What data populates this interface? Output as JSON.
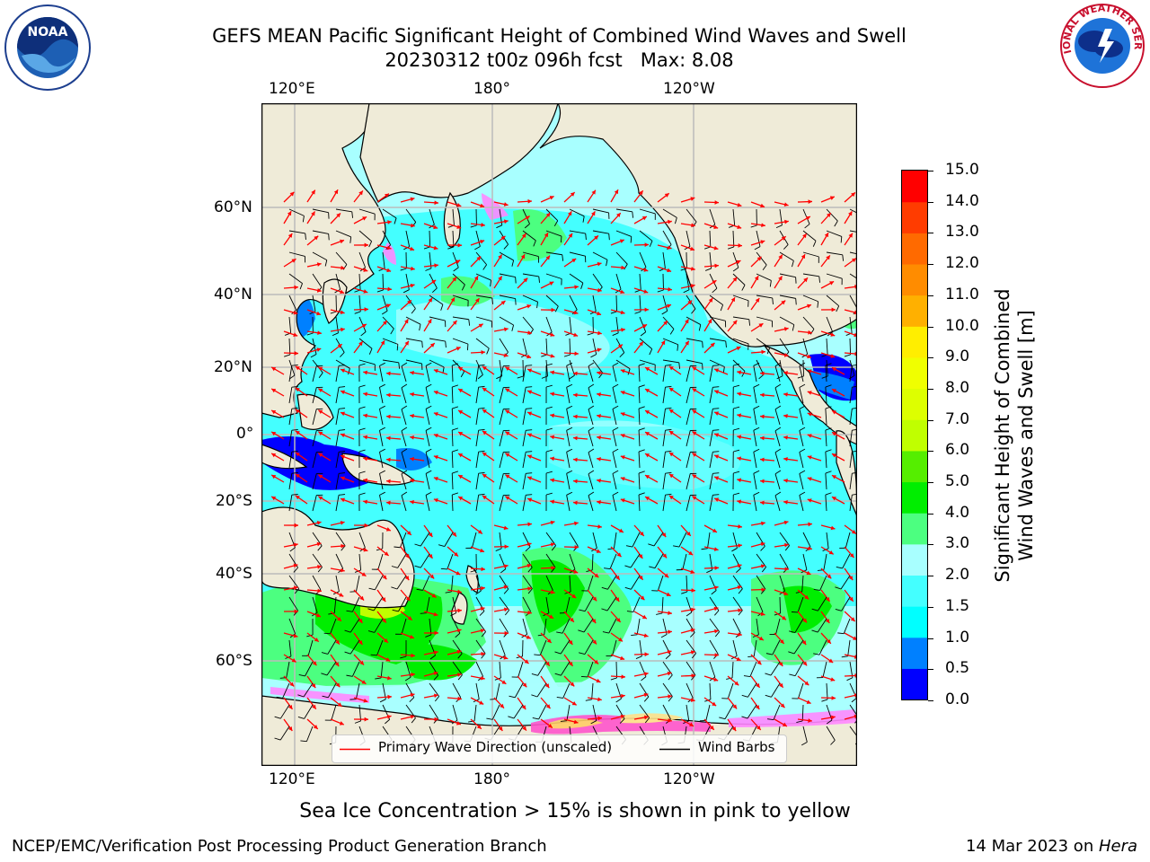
{
  "title": {
    "line1": "GEFS MEAN Pacific Significant Height of Combined Wind Waves and Swell",
    "line2": "20230312 t00z 096h fcst   Max: 8.08"
  },
  "map": {
    "lon_labels": [
      "120°E",
      "180°",
      "120°W"
    ],
    "lat_labels": [
      "60°N",
      "40°N",
      "20°N",
      "0°",
      "20°S",
      "40°S",
      "60°S"
    ]
  },
  "legend": {
    "wave_label": "Primary Wave Direction (unscaled)",
    "barb_label": "Wind Barbs",
    "wave_color": "#ff0000",
    "barb_color": "#000000"
  },
  "colorbar": {
    "label_line1": "Significant Height of Combined",
    "label_line2": "Wind Waves and Swell [m]",
    "ticks": [
      "0.0",
      "0.5",
      "1.0",
      "1.5",
      "2.0",
      "3.0",
      "4.0",
      "5.0",
      "6.0",
      "7.0",
      "8.0",
      "9.0",
      "10.0",
      "11.0",
      "12.0",
      "13.0",
      "14.0",
      "15.0"
    ],
    "colors": [
      "#0000ff",
      "#0080ff",
      "#00ffff",
      "#44ffff",
      "#a8ffff",
      "#4cff80",
      "#00ee00",
      "#55ee00",
      "#c0ff00",
      "#ddff00",
      "#f0ff00",
      "#ffee00",
      "#ffb000",
      "#ff8c00",
      "#ff6a00",
      "#ff3c00",
      "#ff0000"
    ]
  },
  "note": "Sea Ice Concentration > 15% is shown in pink to yellow",
  "footer": {
    "left": "NCEP/EMC/Verification Post Processing Product Generation Branch",
    "right_prefix": "14 Mar 2023 on ",
    "right_host": "Hera"
  },
  "logos": {
    "left": "NOAA",
    "right": "NATIONAL WEATHER SERVICE"
  }
}
